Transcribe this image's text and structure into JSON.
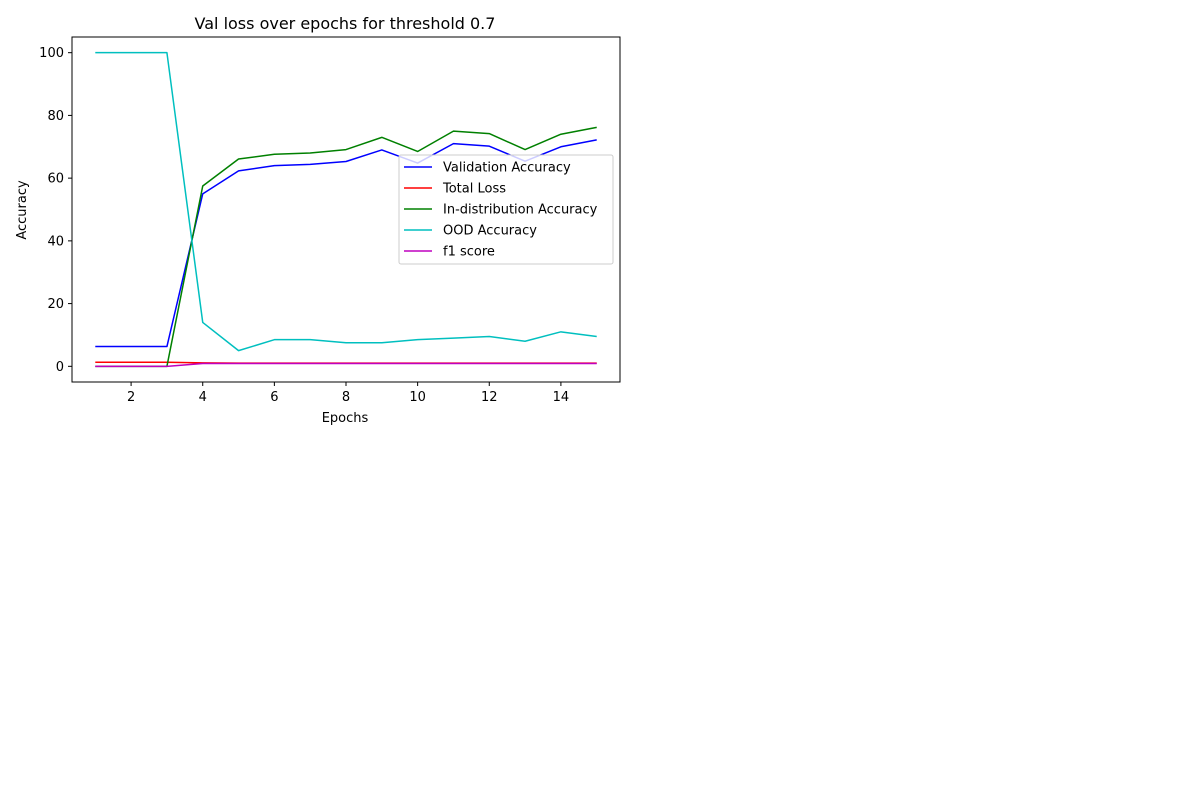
{
  "chart_data": {
    "type": "line",
    "title": "Val loss over epochs for threshold 0.7",
    "xlabel": "Epochs",
    "ylabel": "Accuracy",
    "x": [
      1,
      2,
      3,
      4,
      5,
      6,
      7,
      8,
      9,
      10,
      11,
      12,
      13,
      14,
      15
    ],
    "xlim": [
      0.35,
      15.65
    ],
    "ylim": [
      -5,
      105
    ],
    "xticks": [
      2,
      4,
      6,
      8,
      10,
      12,
      14
    ],
    "yticks": [
      0,
      20,
      40,
      60,
      80,
      100
    ],
    "grid": false,
    "legend_position": "center-right",
    "series": [
      {
        "name": "Validation Accuracy",
        "color": "#0000ff",
        "values": [
          6.3,
          6.3,
          6.3,
          55.0,
          62.3,
          64.0,
          64.4,
          65.3,
          69.0,
          64.8,
          71.0,
          70.2,
          65.4,
          70.0,
          72.2
        ]
      },
      {
        "name": "Total Loss",
        "color": "#ff0000",
        "values": [
          1.3,
          1.3,
          1.3,
          1.1,
          1.0,
          1.0,
          1.0,
          1.0,
          1.0,
          1.0,
          1.0,
          1.0,
          1.0,
          1.0,
          1.0
        ]
      },
      {
        "name": "In-distribution Accuracy",
        "color": "#008000",
        "values": [
          0.0,
          0.0,
          0.0,
          57.5,
          66.1,
          67.6,
          68.0,
          69.1,
          73.0,
          68.5,
          75.0,
          74.2,
          69.1,
          74.0,
          76.2
        ]
      },
      {
        "name": "OOD Accuracy",
        "color": "#00bfbf",
        "values": [
          100.0,
          100.0,
          100.0,
          14.0,
          5.0,
          8.5,
          8.5,
          7.5,
          7.5,
          8.5,
          9.0,
          9.5,
          8.0,
          11.0,
          9.5
        ]
      },
      {
        "name": "f1 score",
        "color": "#bf00bf",
        "values": [
          0.0,
          0.0,
          0.0,
          0.9,
          0.9,
          0.9,
          0.9,
          0.9,
          0.9,
          0.9,
          0.9,
          0.9,
          0.9,
          0.9,
          0.9
        ]
      }
    ]
  }
}
